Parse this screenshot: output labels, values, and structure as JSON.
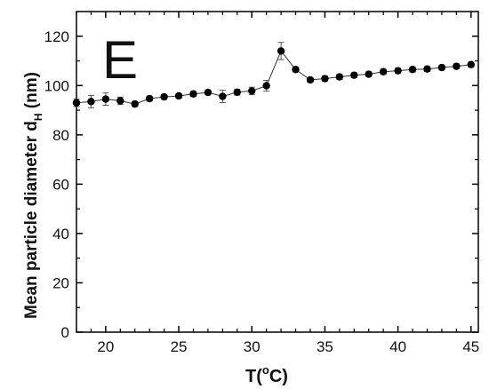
{
  "chart_data": {
    "type": "scatter",
    "panel_label": "E",
    "xlabel": {
      "main": "T(",
      "sup": "o",
      "unit": "C)"
    },
    "ylabel": {
      "main": "Mean particle diameter d",
      "sub": "H",
      "unit": " (nm)"
    },
    "xlim": [
      18,
      45.5
    ],
    "ylim": [
      0,
      130
    ],
    "xticks": [
      20,
      25,
      30,
      35,
      40,
      45
    ],
    "yticks": [
      0,
      20,
      40,
      60,
      80,
      100,
      120
    ],
    "grid": false,
    "series": [
      {
        "x": [
          18,
          19,
          20,
          21,
          22,
          23,
          24,
          25,
          26,
          27,
          28,
          29,
          30,
          31,
          32,
          33,
          34,
          35,
          36,
          37,
          38,
          39,
          40,
          41,
          42,
          43,
          44,
          45
        ],
        "y": [
          93,
          93.5,
          94.5,
          93.8,
          92.5,
          94.7,
          95.4,
          95.8,
          96.6,
          97.2,
          95.6,
          97.3,
          97.8,
          99.9,
          114,
          106.5,
          102.3,
          102.8,
          103.5,
          104.2,
          104.6,
          105.6,
          106,
          106.5,
          106.7,
          107.3,
          107.8,
          108.5
        ],
        "yerr": [
          1.5,
          2.5,
          2.5,
          1.5,
          1,
          1,
          1,
          1,
          1,
          1,
          2.5,
          1.2,
          1.5,
          2.2,
          3.5,
          1,
          1,
          1,
          1,
          1,
          1,
          1,
          1,
          1,
          1,
          1,
          1,
          1
        ],
        "marker": "circle",
        "color": "#000000",
        "connected": true
      }
    ]
  }
}
